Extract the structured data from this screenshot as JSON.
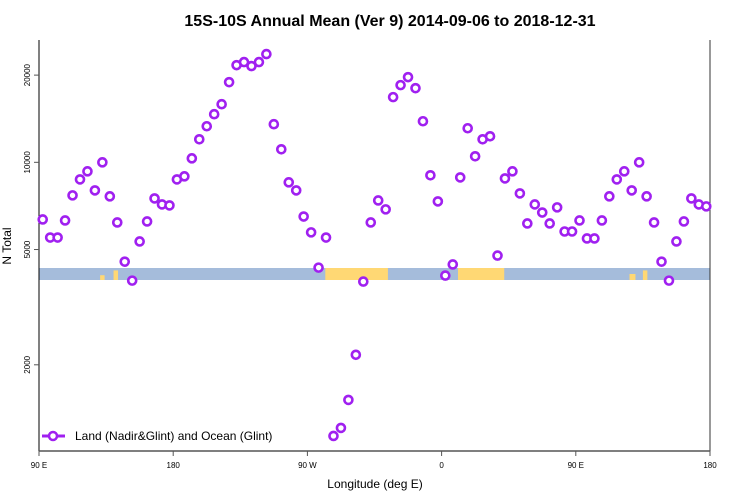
{
  "chart_data": {
    "type": "scatter",
    "title": "15S-10S Annual Mean (Ver 9)   2014-09-06 to 2018-12-31",
    "xlabel": "Longitude (deg E)",
    "ylabel": "N Total",
    "yscale": "log",
    "xlim": [
      90,
      540
    ],
    "ylim": [
      1008,
      26440
    ],
    "x_ticks": [
      {
        "value": 90,
        "label": "90 E"
      },
      {
        "value": 180,
        "label": "180"
      },
      {
        "value": 270,
        "label": "90 W"
      },
      {
        "value": 360,
        "label": "0"
      },
      {
        "value": 450,
        "label": "90 E"
      },
      {
        "value": 540,
        "label": "180"
      }
    ],
    "y_ticks": [
      {
        "value": 2000,
        "label": "2000"
      },
      {
        "value": 5000,
        "label": "5000"
      },
      {
        "value": 10000,
        "label": "10000"
      },
      {
        "value": 20000,
        "label": "20000"
      }
    ],
    "legend": {
      "position": "bottom-left",
      "label": "Land (Nadir&Glint) and Ocean (Glint)"
    },
    "series": [
      {
        "name": "Land (Nadir&Glint) and Ocean (Glint)",
        "color": "#a020f0",
        "x_start": 92.5,
        "x_step": 5,
        "values": [
          6350,
          5500,
          5500,
          6300,
          7690,
          8730,
          9310,
          8000,
          10000,
          7630,
          6200,
          4540,
          3905,
          5330,
          6250,
          7505,
          7155,
          7100,
          8730,
          8945,
          10320,
          12010,
          13320,
          14660,
          15870,
          18910,
          21650,
          22180,
          21490,
          22180,
          23640,
          13540,
          11090,
          8530,
          8000,
          6500,
          5730,
          4330,
          5500,
          1136,
          1211,
          1513,
          2166,
          3875,
          6200,
          7385,
          6880,
          16790,
          18470,
          19680,
          18030,
          13860,
          9020,
          7330,
          4065,
          4440,
          8870,
          13110,
          10490,
          12010,
          12300,
          4765,
          8800,
          9310,
          7810,
          6150,
          7155,
          6710,
          6150,
          6990,
          5770,
          5770,
          6300,
          5460,
          5460,
          6300,
          7630,
          8730,
          9310,
          8000,
          10000,
          7630,
          6200,
          4540,
          3905,
          5330,
          6250,
          7505,
          7155,
          7045
        ]
      }
    ],
    "surface_strip": {
      "ocean_color": "#a5bcdb",
      "land_color": "#ffd874",
      "land_segments": [
        [
          131,
          134,
          0.4
        ],
        [
          140,
          143,
          0.8
        ],
        [
          282,
          324,
          1
        ],
        [
          371,
          402,
          1
        ],
        [
          486,
          490,
          0.5
        ],
        [
          495,
          498,
          0.8
        ]
      ]
    }
  }
}
